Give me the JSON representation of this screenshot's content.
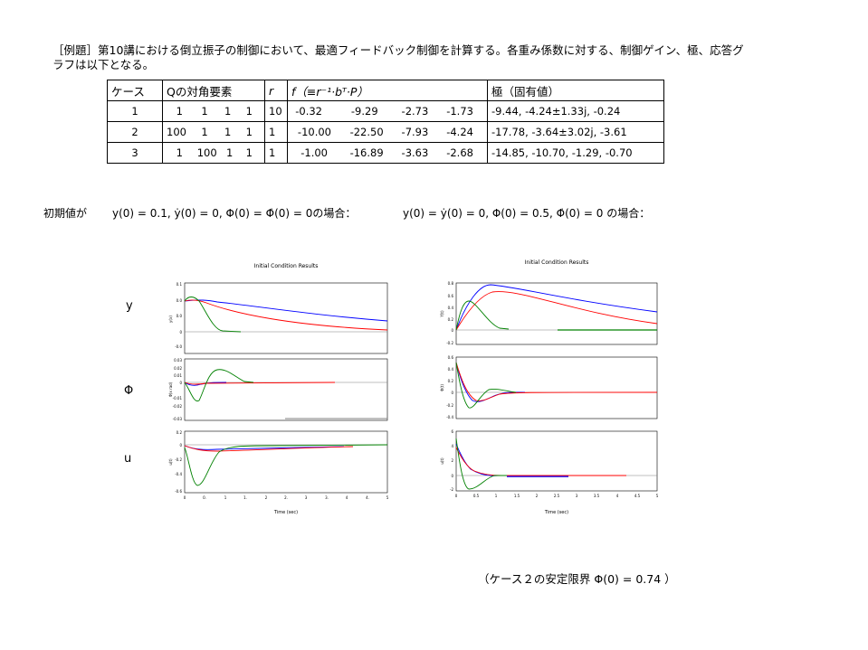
{
  "intro": {
    "line1": "［例題］第10講における倒立振子の制御において、最適フィードバック制御を計算する。各重み係数に対する、制御ゲイン、極、応答グ",
    "line2": "ラフは以下となる。"
  },
  "table": {
    "headers": {
      "case": "ケース",
      "q": "Qの対角要素",
      "r": "r",
      "f": "f（≡r⁻¹·bᵀ·P）",
      "poles": "極（固有値）"
    },
    "rows": [
      {
        "case": "1",
        "q": [
          "1",
          "1",
          "1",
          "1"
        ],
        "r": "10",
        "f": [
          "-0.32",
          "-9.29",
          "-2.73",
          "-1.73"
        ],
        "poles": "-9.44,  -4.24±1.33j,  -0.24"
      },
      {
        "case": "2",
        "q": [
          "100",
          "1",
          "1",
          "1"
        ],
        "r": "1",
        "f": [
          "-10.00",
          "-22.50",
          "-7.93",
          "-4.24"
        ],
        "poles": "-17.78,  -3.64±3.02j,  -3.61"
      },
      {
        "case": "3",
        "q": [
          "1",
          "100",
          "1",
          "1"
        ],
        "r": "1",
        "f": [
          "-1.00",
          "-16.89",
          "-3.63",
          "-2.68"
        ],
        "poles": "-14.85, -10.70,  -1.29,  -0.70"
      }
    ]
  },
  "conditions": {
    "lead": "初期値が",
    "left": "y(0) = 0.1, ẏ(0) = 0, Φ(0) = Φ̇(0) = 0の場合：",
    "right": "y(0) = ẏ(0) = 0, Φ(0) = 0.5, Φ̇(0) = 0  の場合："
  },
  "row_labels": {
    "y": "y",
    "phi": "Φ",
    "u": "u"
  },
  "plots": {
    "title": "Initial Condition Results",
    "xlabel": "Time (sec)",
    "left_ylabels": [
      "y(x)",
      "Φ(x rad)",
      "u(t)"
    ],
    "right_ylabels": [
      "Y(t)",
      "Φ(t)",
      "u(t)"
    ],
    "left_yticks": {
      "y": [
        "0.1",
        "0.0",
        "0.0",
        "0",
        "-0.0"
      ],
      "phi": [
        "0.03",
        "0.02",
        "0.01",
        "0",
        "-0.01",
        "-0.02",
        "-0.03"
      ],
      "u": [
        "0.2",
        "0",
        "-0.2",
        "-0.4",
        "-0.6"
      ]
    },
    "left_xticks": [
      "0",
      "0.",
      "1",
      "1.",
      "2",
      "2.",
      "3",
      "3.",
      "4",
      "4.",
      "5"
    ],
    "right_yticks": {
      "y": [
        "0.8",
        "0.6",
        "0.4",
        "0.2",
        "0",
        "-0.2"
      ],
      "phi": [
        "0.6",
        "0.4",
        "0.2",
        "0",
        "-0.2",
        "-0.4"
      ],
      "u": [
        "6",
        "4",
        "2",
        "0",
        "-2"
      ]
    },
    "right_xticks": [
      "0",
      "0.5",
      "1",
      "1.5",
      "2",
      "2.5",
      "3",
      "3.5",
      "4",
      "4.5",
      "5"
    ],
    "colors": {
      "case1": "#0000ff",
      "case2": "#ff0000",
      "case3": "#008000",
      "zero": "#808080"
    }
  },
  "footnote": "（ケース２の安定限界 Φ(0) = 0.74 ）"
}
